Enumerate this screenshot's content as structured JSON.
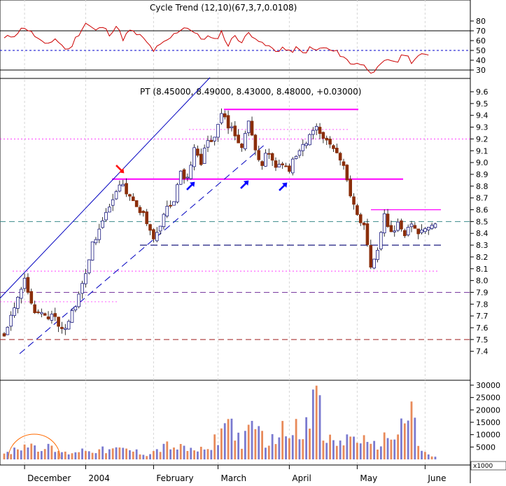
{
  "panels": {
    "oscillator": {
      "title": "Cycle Trend (12,10)(67,3,7,0.0108)",
      "ticks": [
        80,
        70,
        60,
        50,
        40,
        30
      ],
      "ylim": [
        24,
        86
      ],
      "upper_line": 70,
      "lower_line": 30,
      "mid_line": 50
    },
    "price": {
      "header": "PT (8.45000, 8.49000, 8.43000, 8.48000, +0.03000)",
      "ticks": [
        "9.6",
        "9.5",
        "9.4",
        "9.3",
        "9.2",
        "9.1",
        "9.0",
        "8.9",
        "8.8",
        "8.7",
        "8.6",
        "8.5",
        "8.4",
        "8.3",
        "8.2",
        "8.1",
        "8.0",
        "7.9",
        "7.8",
        "7.7",
        "7.6",
        "7.5",
        "7.4"
      ],
      "ylim": [
        7.35,
        9.7
      ]
    },
    "volume": {
      "ticks": [
        "30000",
        "25000",
        "20000",
        "15000",
        "10000",
        "5000"
      ],
      "scale_label": "x1000",
      "ylim": [
        0,
        33000
      ]
    }
  },
  "x_axis": {
    "months": [
      {
        "label": "December",
        "index": 6
      },
      {
        "label": "2004",
        "index": 24
      },
      {
        "label": "February",
        "index": 44
      },
      {
        "label": "March",
        "index": 63
      },
      {
        "label": "April",
        "index": 84
      },
      {
        "label": "May",
        "index": 104
      },
      {
        "label": "June",
        "index": 124
      }
    ],
    "n_bars": 128
  },
  "colors": {
    "up_candle": "#1a1a80",
    "down_candle": "#8b2e0a",
    "magenta": "#ff00ff",
    "oscillator_line": "#cc0000",
    "channel": "#0000c0",
    "volume_a": "#e88a5a",
    "volume_b": "#7a7ad0",
    "arrow_red": "#ff1010",
    "arrow_blue": "#0000ff"
  },
  "chart_data": {
    "type": "candlestick",
    "title": "PT (8.45000, 8.49000, 8.43000, 8.48000, +0.03000)",
    "symbol": "PT",
    "last_bar": {
      "open": 8.45,
      "high": 8.49,
      "low": 8.43,
      "close": 8.48,
      "change": 0.03
    },
    "ylim": [
      7.35,
      9.7
    ],
    "x_labels": [
      "December",
      "2004",
      "February",
      "March",
      "April",
      "May",
      "June"
    ],
    "close_waypoints": [
      [
        0,
        7.55
      ],
      [
        4,
        7.85
      ],
      [
        6,
        8.0
      ],
      [
        9,
        7.75
      ],
      [
        12,
        7.68
      ],
      [
        14,
        7.7
      ],
      [
        18,
        7.58
      ],
      [
        20,
        7.72
      ],
      [
        24,
        8.05
      ],
      [
        26,
        8.3
      ],
      [
        28,
        8.45
      ],
      [
        30,
        8.55
      ],
      [
        33,
        8.78
      ],
      [
        35,
        8.82
      ],
      [
        38,
        8.65
      ],
      [
        41,
        8.58
      ],
      [
        44,
        8.35
      ],
      [
        46,
        8.45
      ],
      [
        48,
        8.62
      ],
      [
        50,
        8.68
      ],
      [
        52,
        8.9
      ],
      [
        54,
        8.85
      ],
      [
        56,
        9.12
      ],
      [
        58,
        9.0
      ],
      [
        60,
        9.2
      ],
      [
        62,
        9.2
      ],
      [
        64,
        9.4
      ],
      [
        66,
        9.32
      ],
      [
        68,
        9.25
      ],
      [
        70,
        9.1
      ],
      [
        72,
        9.35
      ],
      [
        74,
        9.08
      ],
      [
        76,
        9.0
      ],
      [
        78,
        9.1
      ],
      [
        80,
        8.95
      ],
      [
        82,
        8.98
      ],
      [
        84,
        8.95
      ],
      [
        86,
        9.05
      ],
      [
        88,
        9.15
      ],
      [
        90,
        9.22
      ],
      [
        92,
        9.28
      ],
      [
        94,
        9.2
      ],
      [
        96,
        9.15
      ],
      [
        98,
        9.1
      ],
      [
        100,
        8.95
      ],
      [
        102,
        8.7
      ],
      [
        104,
        8.55
      ],
      [
        106,
        8.45
      ],
      [
        108,
        8.1
      ],
      [
        110,
        8.25
      ],
      [
        112,
        8.55
      ],
      [
        114,
        8.4
      ],
      [
        116,
        8.5
      ],
      [
        118,
        8.35
      ],
      [
        120,
        8.5
      ],
      [
        122,
        8.4
      ],
      [
        124,
        8.42
      ],
      [
        126,
        8.48
      ],
      [
        127,
        8.48
      ]
    ],
    "oscillator_waypoints": [
      [
        0,
        62
      ],
      [
        3,
        66
      ],
      [
        6,
        74
      ],
      [
        9,
        65
      ],
      [
        12,
        55
      ],
      [
        15,
        62
      ],
      [
        17,
        55
      ],
      [
        19,
        50
      ],
      [
        21,
        62
      ],
      [
        24,
        78
      ],
      [
        27,
        70
      ],
      [
        29,
        74
      ],
      [
        31,
        67
      ],
      [
        33,
        75
      ],
      [
        35,
        62
      ],
      [
        37,
        70
      ],
      [
        40,
        65
      ],
      [
        42,
        58
      ],
      [
        44,
        50
      ],
      [
        46,
        55
      ],
      [
        48,
        60
      ],
      [
        50,
        66
      ],
      [
        52,
        72
      ],
      [
        54,
        74
      ],
      [
        56,
        68
      ],
      [
        58,
        62
      ],
      [
        60,
        64
      ],
      [
        62,
        60
      ],
      [
        64,
        69
      ],
      [
        66,
        55
      ],
      [
        68,
        66
      ],
      [
        70,
        58
      ],
      [
        72,
        68
      ],
      [
        74,
        64
      ],
      [
        76,
        56
      ],
      [
        78,
        54
      ],
      [
        80,
        49
      ],
      [
        82,
        53
      ],
      [
        84,
        48
      ],
      [
        86,
        52
      ],
      [
        88,
        47
      ],
      [
        90,
        52
      ],
      [
        92,
        50
      ],
      [
        94,
        53
      ],
      [
        96,
        50
      ],
      [
        98,
        48
      ],
      [
        100,
        44
      ],
      [
        102,
        36
      ],
      [
        104,
        38
      ],
      [
        106,
        34
      ],
      [
        108,
        29
      ],
      [
        110,
        31
      ],
      [
        112,
        38
      ],
      [
        114,
        40
      ],
      [
        116,
        39
      ],
      [
        118,
        47
      ],
      [
        120,
        39
      ],
      [
        122,
        44
      ],
      [
        124,
        45
      ],
      [
        126,
        47
      ]
    ],
    "volume_waypoints": [
      [
        0,
        1800
      ],
      [
        6,
        6500
      ],
      [
        12,
        5200
      ],
      [
        18,
        2600
      ],
      [
        24,
        4200
      ],
      [
        30,
        3800
      ],
      [
        36,
        4200
      ],
      [
        42,
        2200
      ],
      [
        48,
        5800
      ],
      [
        54,
        4200
      ],
      [
        60,
        3600
      ],
      [
        63,
        10200
      ],
      [
        66,
        16800
      ],
      [
        70,
        7400
      ],
      [
        74,
        14000
      ],
      [
        78,
        6600
      ],
      [
        82,
        12000
      ],
      [
        86,
        15200
      ],
      [
        90,
        13200
      ],
      [
        92,
        29800
      ],
      [
        94,
        9200
      ],
      [
        98,
        6800
      ],
      [
        104,
        10200
      ],
      [
        108,
        4800
      ],
      [
        112,
        8600
      ],
      [
        116,
        11500
      ],
      [
        118,
        16800
      ],
      [
        120,
        23400
      ],
      [
        122,
        5600
      ],
      [
        124,
        2600
      ],
      [
        127,
        900
      ]
    ],
    "horizontal_levels": [
      {
        "value": 9.45,
        "style": "magenta"
      },
      {
        "value": 8.86,
        "style": "magenta"
      },
      {
        "value": 8.6,
        "style": "magenta"
      },
      {
        "value": 8.3,
        "style": "navy dashed"
      },
      {
        "value": 8.5,
        "style": "teal dashed"
      },
      {
        "value": 7.9,
        "style": "purple dashed"
      },
      {
        "value": 7.5,
        "style": "brown dashed"
      },
      {
        "value": 9.28,
        "style": "magenta dotted"
      },
      {
        "value": 9.2,
        "style": "magenta dotted"
      },
      {
        "value": 8.08,
        "style": "magenta dotted"
      },
      {
        "value": 7.82,
        "style": "magenta dotted"
      }
    ]
  }
}
